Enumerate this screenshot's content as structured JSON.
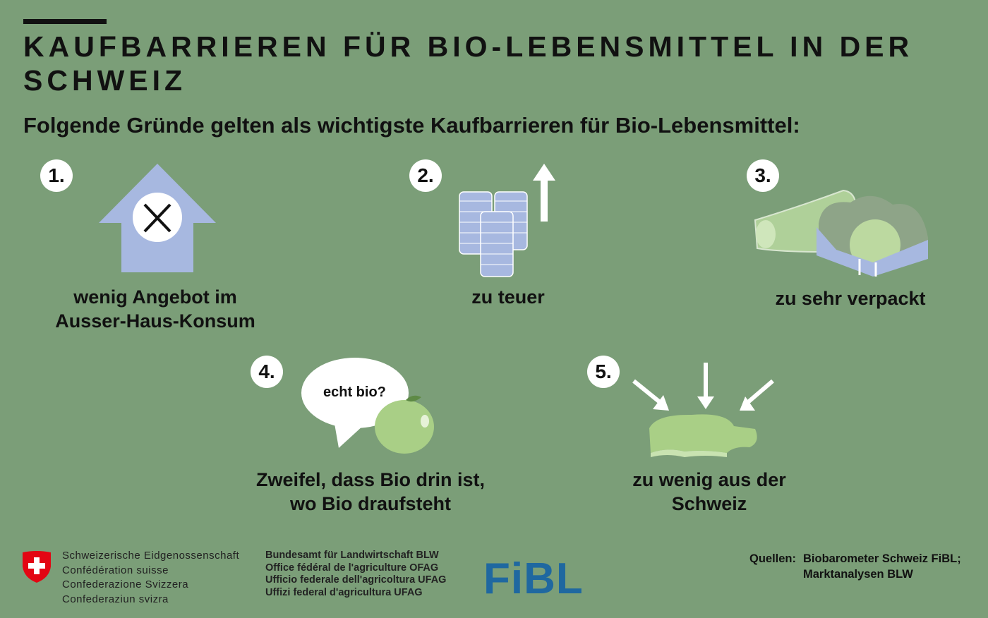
{
  "header": {
    "title": "KAUFBARRIEREN FÜR BIO-LEBENSMITTEL IN DER SCHWEIZ",
    "subtitle": "Folgende Gründe gelten als wichtigste Kaufbarrieren für Bio-Lebensmittel:"
  },
  "items": [
    {
      "number": "1.",
      "caption_lines": [
        "wenig Angebot im",
        "Ausser-Haus-Konsum"
      ],
      "icon": "house-cutlery-icon"
    },
    {
      "number": "2.",
      "caption_lines": [
        "zu teuer"
      ],
      "icon": "coins-arrow-up-icon"
    },
    {
      "number": "3.",
      "caption_lines": [
        "zu sehr verpackt"
      ],
      "icon": "packaged-vegetables-icon"
    },
    {
      "number": "4.",
      "caption_lines": [
        "Zweifel, dass Bio drin ist,",
        "wo Bio draufsteht"
      ],
      "icon": "speech-bubble-apple-icon",
      "bubble_text": "echt bio?"
    },
    {
      "number": "5.",
      "caption_lines": [
        "zu wenig aus der",
        "Schweiz"
      ],
      "icon": "switzerland-map-arrows-icon"
    }
  ],
  "footer": {
    "federation_lines": [
      "Schweizerische Eidgenossenschaft",
      "Confédération suisse",
      "Confederazione Svizzera",
      "Confederaziun svizra"
    ],
    "office_lines": [
      "Bundesamt für Landwirtschaft BLW",
      "Office fédéral de l'agriculture OFAG",
      "Ufficio federale dell'agricoltura UFAG",
      "Uffizi federal d'agricultura UFAG"
    ],
    "fibl_logo": "FiBL",
    "sources_label": "Quellen:",
    "sources_lines": [
      "Biobarometer Schweiz FiBL;",
      "Marktanalysen BLW"
    ]
  },
  "colors": {
    "background": "#7b9e78",
    "lavender": "#a7b8e0",
    "light_green": "#a9cf86",
    "fibl_blue": "#1f68a0",
    "swiss_red": "#e30613"
  }
}
